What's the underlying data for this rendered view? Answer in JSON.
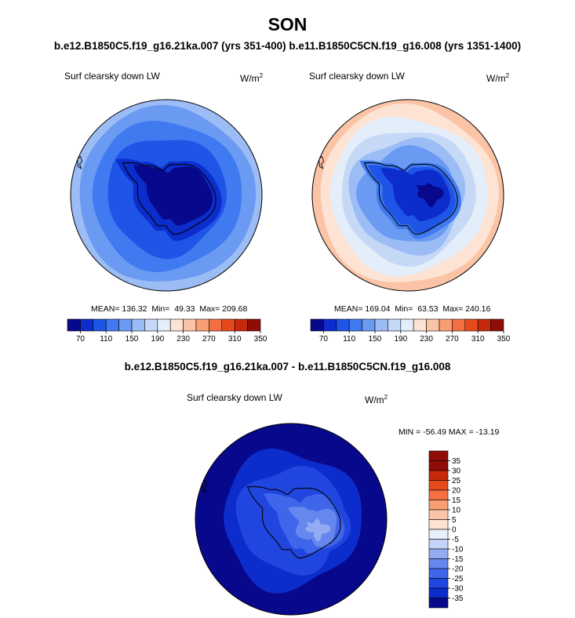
{
  "season": "SON",
  "case_line": "b.e12.B1850C5.f19_g16.21ka.007 (yrs 351-400) b.e11.B1850C5CN.f19_g16.008 (yrs 1351-1400)",
  "colors": {
    "abs_scale": [
      "#08088c",
      "#0c2ccc",
      "#1e55e6",
      "#3f7af0",
      "#6b9af2",
      "#9bbcf5",
      "#c5d9f7",
      "#e4eefa",
      "#fde3d3",
      "#fbc4a6",
      "#f89e73",
      "#f47042",
      "#e64a1c",
      "#c62a0a",
      "#8f0d06"
    ],
    "diff_scale": [
      "#08088c",
      "#0c2ccc",
      "#2146e0",
      "#3f66ea",
      "#6688ee",
      "#93abf2",
      "#c4d3f7",
      "#e8eefb",
      "#fde3d3",
      "#fbc4a6",
      "#f89e73",
      "#f47042",
      "#e64a1c",
      "#c62a0a",
      "#8f0d06"
    ],
    "land_outline": "#000000"
  },
  "chart_data": [
    {
      "type": "heatmap",
      "projection": "south-polar-stereographic",
      "title": "Surf clearsky down LW",
      "units_base": "W/m",
      "units_exp": "2",
      "stats": "MEAN= 136.32  Min=  49.33  Max= 209.68",
      "mean": 136.32,
      "min": 49.33,
      "max": 209.68,
      "colorbar_ticks": [
        "70",
        "110",
        "150",
        "190",
        "230",
        "270",
        "310",
        "350"
      ],
      "contour_levels": [
        70,
        90,
        110,
        130,
        150,
        170,
        190,
        210,
        230,
        250,
        270,
        290,
        310,
        330,
        350
      ]
    },
    {
      "type": "heatmap",
      "projection": "south-polar-stereographic",
      "title": "Surf clearsky down LW",
      "units_base": "W/m",
      "units_exp": "2",
      "stats": "MEAN= 169.04  Min=  63.53  Max= 240.16",
      "mean": 169.04,
      "min": 63.53,
      "max": 240.16,
      "colorbar_ticks": [
        "70",
        "110",
        "150",
        "190",
        "230",
        "270",
        "310",
        "350"
      ],
      "contour_levels": [
        70,
        90,
        110,
        130,
        150,
        170,
        190,
        210,
        230,
        250,
        270,
        290,
        310,
        330,
        350
      ]
    },
    {
      "type": "heatmap",
      "projection": "south-polar-stereographic",
      "heading": "b.e12.B1850C5.f19_g16.21ka.007 - b.e11.B1850C5CN.f19_g16.008",
      "title": "Surf clearsky down LW",
      "units_base": "W/m",
      "units_exp": "2",
      "stats": "MIN = -56.49 MAX = -13.19",
      "min": -56.49,
      "max": -13.19,
      "colorbar_ticks": [
        "35",
        "30",
        "25",
        "20",
        "15",
        "10",
        "5",
        "0",
        "-5",
        "-10",
        "-15",
        "-20",
        "-25",
        "-30",
        "-35"
      ],
      "contour_levels": [
        -35,
        -30,
        -25,
        -20,
        -15,
        -10,
        -5,
        0,
        5,
        10,
        15,
        20,
        25,
        30,
        35
      ]
    }
  ]
}
